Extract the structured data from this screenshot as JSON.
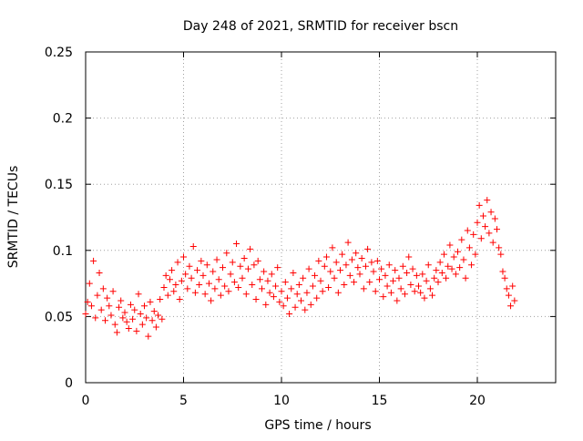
{
  "chart_data": {
    "type": "scatter",
    "title": "Day 248 of 2021, SRMTID for receiver bscn",
    "xlabel": "GPS time / hours",
    "ylabel": "SRMTID / TECUs",
    "xlim": [
      0,
      24
    ],
    "ylim": [
      0,
      0.25
    ],
    "x_ticks": [
      0,
      5,
      10,
      15,
      20
    ],
    "x_tick_labels": [
      "0",
      "5",
      "10",
      "15",
      "20"
    ],
    "y_ticks": [
      0,
      0.05,
      0.1,
      0.15,
      0.2,
      0.25
    ],
    "y_tick_labels": [
      "0",
      "0.05",
      "0.1",
      "0.15",
      "0.2",
      "0.25"
    ],
    "grid": true,
    "marker": "+",
    "marker_color": "#ff0000",
    "series": [
      {
        "name": "bscn",
        "x_start_hours": 0.0,
        "sample_interval_hours": 0.1,
        "values": [
          0.052,
          0.061,
          0.075,
          0.058,
          0.092,
          0.049,
          0.066,
          0.083,
          0.055,
          0.071,
          0.047,
          0.064,
          0.058,
          0.051,
          0.069,
          0.044,
          0.038,
          0.057,
          0.062,
          0.049,
          0.053,
          0.046,
          0.041,
          0.059,
          0.048,
          0.055,
          0.039,
          0.067,
          0.052,
          0.044,
          0.058,
          0.049,
          0.035,
          0.061,
          0.047,
          0.054,
          0.042,
          0.051,
          0.063,
          0.048,
          0.072,
          0.081,
          0.066,
          0.078,
          0.085,
          0.069,
          0.074,
          0.091,
          0.063,
          0.077,
          0.095,
          0.082,
          0.071,
          0.088,
          0.079,
          0.103,
          0.068,
          0.085,
          0.074,
          0.092,
          0.081,
          0.067,
          0.089,
          0.075,
          0.062,
          0.084,
          0.071,
          0.093,
          0.078,
          0.066,
          0.087,
          0.073,
          0.098,
          0.069,
          0.082,
          0.091,
          0.076,
          0.105,
          0.072,
          0.088,
          0.079,
          0.094,
          0.067,
          0.086,
          0.101,
          0.074,
          0.089,
          0.063,
          0.092,
          0.078,
          0.071,
          0.084,
          0.059,
          0.077,
          0.068,
          0.082,
          0.065,
          0.073,
          0.087,
          0.061,
          0.069,
          0.058,
          0.076,
          0.064,
          0.052,
          0.071,
          0.083,
          0.057,
          0.067,
          0.074,
          0.062,
          0.079,
          0.055,
          0.068,
          0.086,
          0.059,
          0.073,
          0.081,
          0.064,
          0.092,
          0.077,
          0.069,
          0.088,
          0.095,
          0.072,
          0.084,
          0.102,
          0.079,
          0.091,
          0.068,
          0.085,
          0.097,
          0.074,
          0.089,
          0.106,
          0.081,
          0.093,
          0.076,
          0.098,
          0.087,
          0.082,
          0.094,
          0.071,
          0.088,
          0.101,
          0.076,
          0.091,
          0.084,
          0.069,
          0.092,
          0.078,
          0.086,
          0.065,
          0.081,
          0.073,
          0.089,
          0.068,
          0.077,
          0.085,
          0.062,
          0.079,
          0.071,
          0.088,
          0.067,
          0.083,
          0.095,
          0.074,
          0.086,
          0.069,
          0.081,
          0.073,
          0.068,
          0.082,
          0.064,
          0.077,
          0.089,
          0.071,
          0.066,
          0.079,
          0.085,
          0.076,
          0.091,
          0.083,
          0.097,
          0.079,
          0.088,
          0.104,
          0.086,
          0.095,
          0.082,
          0.099,
          0.087,
          0.108,
          0.093,
          0.079,
          0.115,
          0.102,
          0.089,
          0.112,
          0.097,
          0.121,
          0.134,
          0.109,
          0.126,
          0.118,
          0.138,
          0.113,
          0.129,
          0.106,
          0.124,
          0.116,
          0.102,
          0.097,
          0.084,
          0.079,
          0.071,
          0.066,
          0.058,
          0.073,
          0.062
        ]
      }
    ]
  }
}
